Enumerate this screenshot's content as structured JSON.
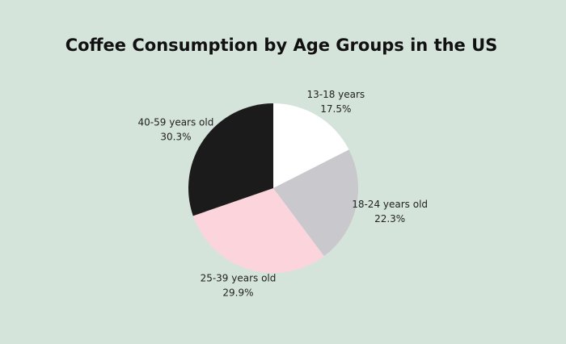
{
  "chart_data": {
    "type": "pie",
    "title": "Coffee Consumption by Age Groups in the US",
    "categories": [
      "13-18 years",
      "18-24 years old",
      "25-39 years old",
      "40-59 years old"
    ],
    "values": [
      17.5,
      22.3,
      29.9,
      30.3
    ],
    "value_labels": [
      "17.5%",
      "22.3%",
      "29.9%",
      "30.3%"
    ],
    "colors": [
      "#ffffff",
      "#c9c8cc",
      "#fcd4dc",
      "#1b1b1b"
    ]
  }
}
